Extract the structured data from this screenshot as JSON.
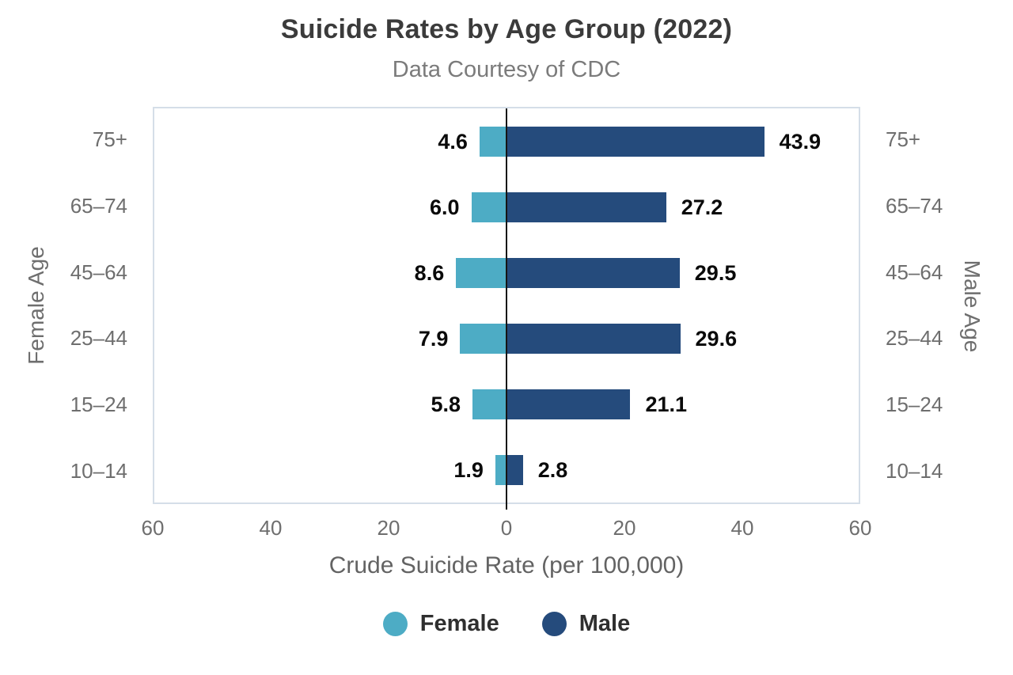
{
  "title": "Suicide Rates by Age Group (2022)",
  "subtitle": "Data Courtesy of CDC",
  "left_axis_title": "Female Age",
  "right_axis_title": "Male Age",
  "x_axis_title": "Crude Suicide Rate (per 100,000)",
  "colors": {
    "female": "#4DACC5",
    "male": "#254B7C",
    "zero_line": "#151515",
    "plot_border": "#d5dee8",
    "axis_text": "#6e6e6e",
    "title_text": "#3b3b3b",
    "subtitle_text": "#7b7b7b",
    "data_label_text": "#0a0a0a"
  },
  "legend": [
    {
      "label": "Female",
      "color_key": "female"
    },
    {
      "label": "Male",
      "color_key": "male"
    }
  ],
  "chart_data": {
    "type": "bar",
    "orientation": "horizontal-diverging",
    "title": "Suicide Rates by Age Group (2022)",
    "subtitle": "Data Courtesy of CDC",
    "xlabel": "Crude Suicide Rate (per 100,000)",
    "ylabel_left": "Female Age",
    "ylabel_right": "Male Age",
    "categories": [
      "75+",
      "65–74",
      "45–64",
      "25–44",
      "15–24",
      "10–14"
    ],
    "series": [
      {
        "name": "Female",
        "values": [
          4.6,
          6.0,
          8.6,
          7.9,
          5.8,
          1.9
        ]
      },
      {
        "name": "Male",
        "values": [
          43.9,
          27.2,
          29.5,
          29.6,
          21.1,
          2.8
        ]
      }
    ],
    "xlim": [
      -60,
      60
    ],
    "x_ticks": [
      "60",
      "40",
      "20",
      "0",
      "20",
      "40",
      "60"
    ],
    "grid": false,
    "legend_position": "bottom"
  }
}
